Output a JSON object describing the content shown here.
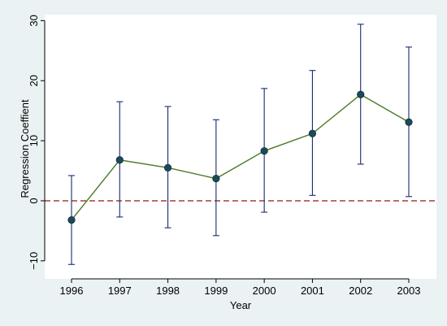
{
  "chart_data": {
    "type": "line",
    "xlabel": "Year",
    "ylabel": "Regression Coeffient",
    "x": [
      1996,
      1997,
      1998,
      1999,
      2000,
      2001,
      2002,
      2003
    ],
    "x_tick_labels": [
      "1996",
      "1997",
      "1998",
      "1999",
      "2000",
      "2001",
      "2002",
      "2003"
    ],
    "series": [
      {
        "values": [
          -3.2,
          6.8,
          5.5,
          3.7,
          8.3,
          11.2,
          17.7,
          13.1
        ],
        "ci_low": [
          -10.6,
          -2.7,
          -4.5,
          -5.8,
          -1.9,
          0.9,
          6.1,
          0.7
        ],
        "ci_high": [
          4.2,
          16.5,
          15.7,
          13.5,
          18.7,
          21.7,
          29.4,
          25.6
        ]
      }
    ],
    "ylim": [
      -13,
      31
    ],
    "y_ticks": [
      -10,
      0,
      10,
      20,
      30
    ],
    "y_tick_labels": [
      "−10",
      "0",
      "10",
      "20",
      "30"
    ],
    "reference_line": {
      "y": 0,
      "style": "dashed",
      "color": "#8b1a1a"
    },
    "colors": {
      "line": "#4a7a26",
      "marker": "#1c4a5a",
      "error_bar": "#1a2a6e",
      "plot_background": "#ffffff",
      "outer_background": "#eaf2f3"
    },
    "grid": false,
    "legend": "none"
  }
}
